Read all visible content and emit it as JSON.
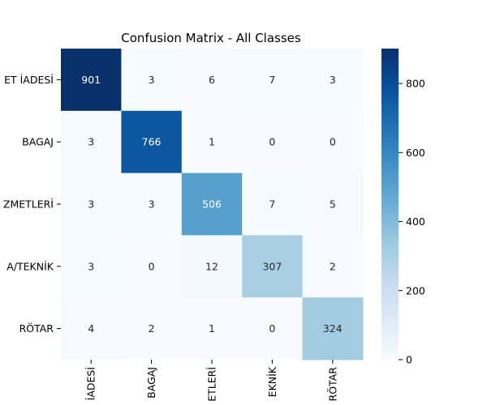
{
  "chart_data": {
    "type": "heatmap",
    "title": "Confusion Matrix - All Classes",
    "row_labels": [
      "ET İADESİ",
      "BAGAJ",
      "ZMETLERİ",
      "A/TEKNİK",
      "RÖTAR"
    ],
    "col_labels": [
      "İADESİ",
      "BAGAJ",
      "ETLERİ",
      "EKNİK",
      "RÖTAR"
    ],
    "values": [
      [
        901,
        3,
        6,
        7,
        3
      ],
      [
        3,
        766,
        1,
        0,
        0
      ],
      [
        3,
        3,
        506,
        7,
        5
      ],
      [
        3,
        0,
        12,
        307,
        2
      ],
      [
        4,
        2,
        1,
        0,
        324
      ]
    ],
    "colorbar": {
      "min": 0,
      "max": 901,
      "ticks": [
        0,
        200,
        400,
        600,
        800
      ]
    },
    "colormap": "Blues",
    "colors": {
      "low": "#f7fbff",
      "high": "#08306b",
      "text_dark": "#262626",
      "text_light": "#ffffff"
    }
  }
}
